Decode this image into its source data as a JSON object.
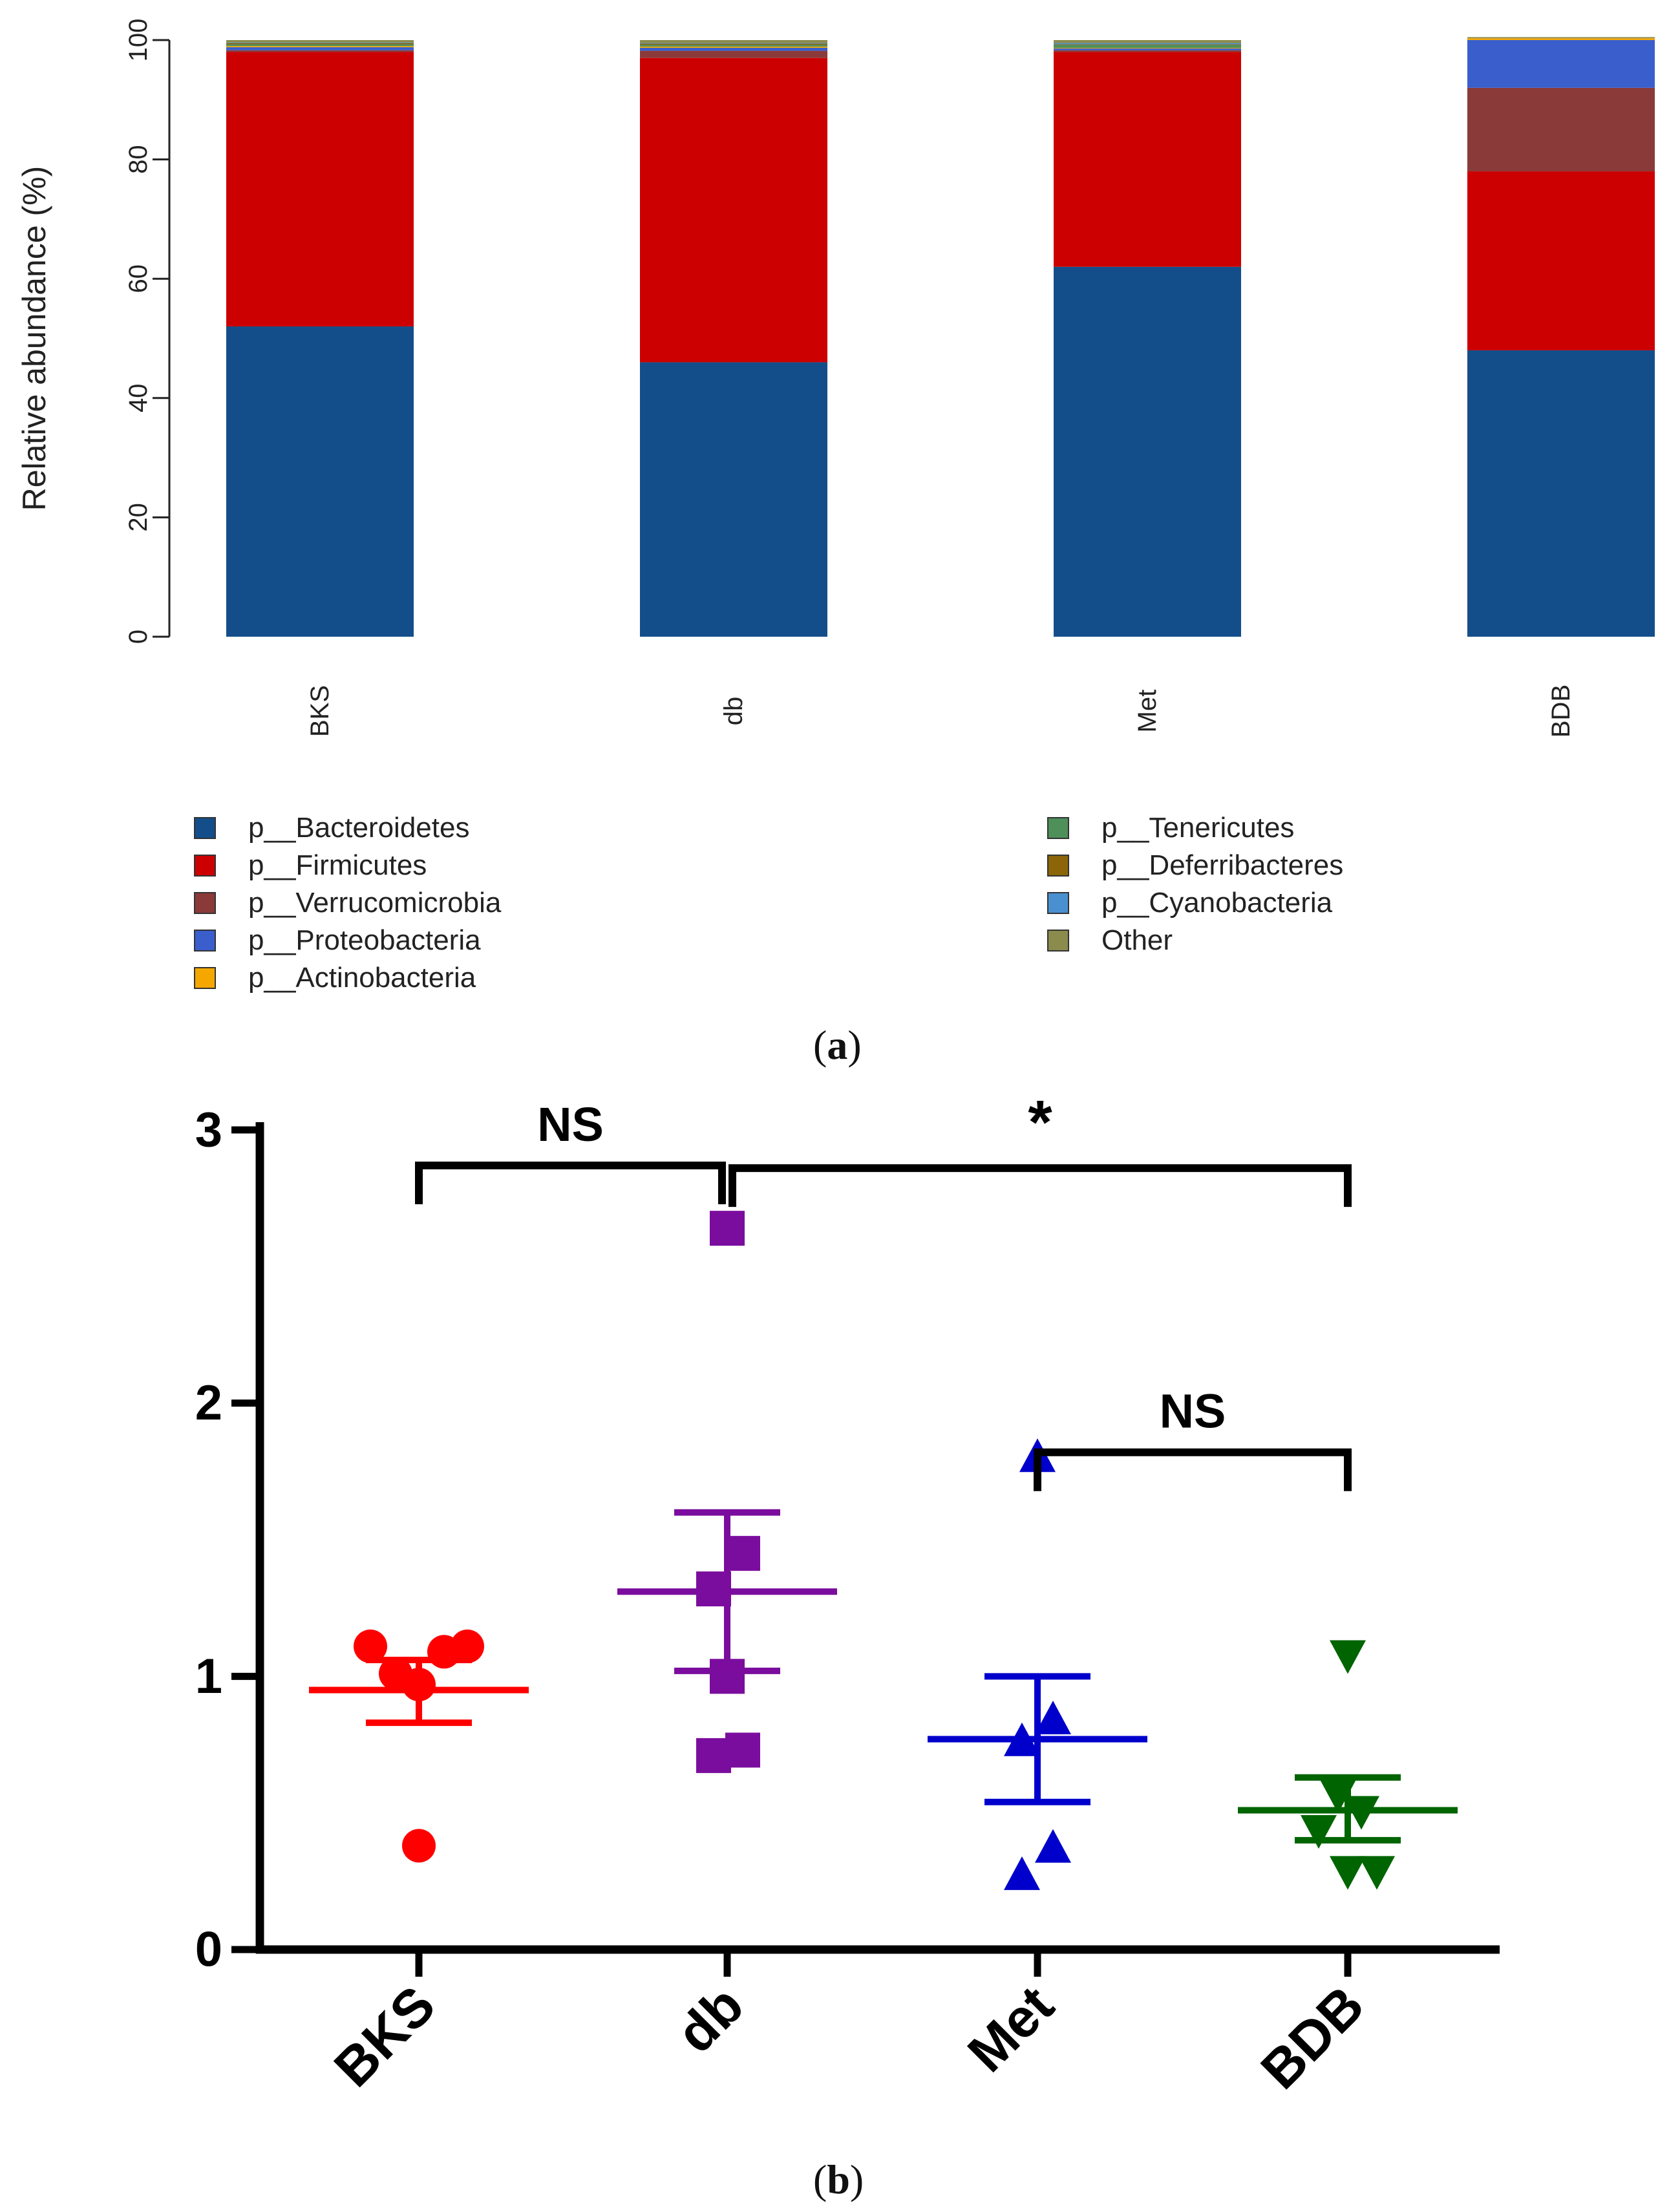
{
  "panel_a": {
    "label": "a",
    "legend": [
      {
        "name": "p__Bacteroidetes",
        "color": "#134E8A"
      },
      {
        "name": "p__Firmicutes",
        "color": "#CC0000"
      },
      {
        "name": "p__Verrucomicrobia",
        "color": "#8B3A3A"
      },
      {
        "name": "p__Proteobacteria",
        "color": "#3A5FCD"
      },
      {
        "name": "p__Actinobacteria",
        "color": "#F5A700"
      },
      {
        "name": "p__Tenericutes",
        "color": "#4E8F5A"
      },
      {
        "name": "p__Deferribacteres",
        "color": "#8B6508"
      },
      {
        "name": "p__Cyanobacteria",
        "color": "#4A90D0"
      },
      {
        "name": "Other",
        "color": "#8B8B4E"
      }
    ]
  },
  "panel_b": {
    "label": "b"
  },
  "chart_data": [
    {
      "type": "bar",
      "stacked": true,
      "title": "",
      "xlabel": "",
      "ylabel": "Relative abundance (%)",
      "ylim": [
        0,
        100
      ],
      "yticks": [
        "0",
        "20",
        "40",
        "60",
        "80",
        "100"
      ],
      "categories": [
        "BKS",
        "db",
        "Met",
        "BDB"
      ],
      "legend_position": "bottom",
      "series": [
        {
          "name": "p__Bacteroidetes",
          "color": "#134E8A",
          "values": [
            52,
            46,
            62,
            48
          ]
        },
        {
          "name": "p__Firmicutes",
          "color": "#CC0000",
          "values": [
            46,
            51,
            36,
            30
          ]
        },
        {
          "name": "p__Verrucomicrobia",
          "color": "#8B3A3A",
          "values": [
            0.3,
            1.2,
            0.3,
            14
          ]
        },
        {
          "name": "p__Proteobacteria",
          "color": "#3A5FCD",
          "values": [
            0.5,
            0.5,
            0.3,
            8
          ]
        },
        {
          "name": "p__Actinobacteria",
          "color": "#F5A700",
          "values": [
            0.2,
            0.2,
            0.1,
            0.3
          ]
        },
        {
          "name": "p__Tenericutes",
          "color": "#4E8F5A",
          "values": [
            0.3,
            0.3,
            0.5,
            0
          ]
        },
        {
          "name": "p__Deferribacteres",
          "color": "#8B6508",
          "values": [
            0.2,
            0.2,
            0.1,
            0
          ]
        },
        {
          "name": "p__Cyanobacteria",
          "color": "#4A90D0",
          "values": [
            0.1,
            0.1,
            0.2,
            0
          ]
        },
        {
          "name": "Other",
          "color": "#8B8B4E",
          "values": [
            0.4,
            0.5,
            0.5,
            0.2
          ]
        }
      ]
    },
    {
      "type": "scatter",
      "title": "",
      "xlabel": "",
      "ylabel": "",
      "ylim": [
        0,
        3
      ],
      "yticks": [
        "0",
        "1",
        "2",
        "3"
      ],
      "categories": [
        "BKS",
        "db",
        "Met",
        "BDB"
      ],
      "groups": [
        {
          "name": "BKS",
          "color": "#FF0000",
          "marker": "circle",
          "points": [
            [
              -0.25,
              1.11
            ],
            [
              -0.12,
              1.01
            ],
            [
              0.0,
              0.97
            ],
            [
              0.13,
              1.09
            ],
            [
              0.25,
              1.11
            ],
            [
              0.0,
              0.38
            ]
          ],
          "mean": 0.95,
          "sem_low": 0.83,
          "sem_high": 1.06
        },
        {
          "name": "db",
          "color": "#7B0D9E",
          "marker": "square",
          "points": [
            [
              0.0,
              2.64
            ],
            [
              0.08,
              1.45
            ],
            [
              -0.07,
              1.32
            ],
            [
              0.0,
              1.0
            ],
            [
              -0.07,
              0.71
            ],
            [
              0.08,
              0.73
            ]
          ],
          "mean": 1.31,
          "sem_low": 1.02,
          "sem_high": 1.6
        },
        {
          "name": "Met",
          "color": "#0000CC",
          "marker": "triangle-up",
          "points": [
            [
              0.0,
              1.8
            ],
            [
              0.08,
              0.84
            ],
            [
              -0.08,
              0.76
            ],
            [
              0.08,
              0.37
            ],
            [
              -0.08,
              0.27
            ]
          ],
          "mean": 0.77,
          "sem_low": 0.54,
          "sem_high": 1.0
        },
        {
          "name": "BDB",
          "color": "#006400",
          "marker": "triangle-down",
          "points": [
            [
              0.0,
              1.08
            ],
            [
              -0.05,
              0.57
            ],
            [
              0.07,
              0.51
            ],
            [
              -0.15,
              0.44
            ],
            [
              0.0,
              0.29
            ],
            [
              0.15,
              0.29
            ]
          ],
          "mean": 0.51,
          "sem_low": 0.4,
          "sem_high": 0.63
        }
      ],
      "annotations": [
        {
          "text": "NS",
          "from": "BKS",
          "to": "db",
          "level": 2.87
        },
        {
          "text": "*",
          "from": "db",
          "to": "BDB",
          "level": 2.86
        },
        {
          "text": "NS",
          "from": "Met",
          "to": "BDB",
          "level": 1.82
        }
      ]
    }
  ]
}
